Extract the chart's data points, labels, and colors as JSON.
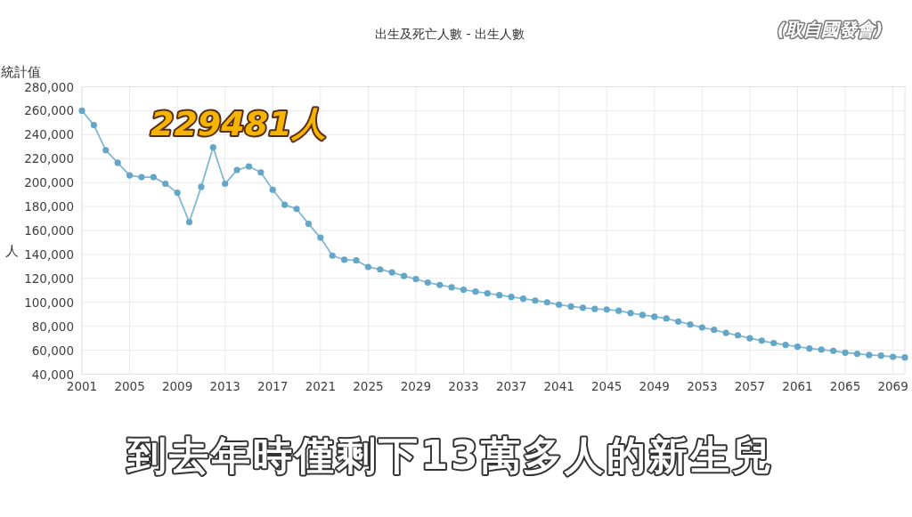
{
  "chart_data": {
    "type": "line",
    "title": "出生及死亡人數 - 出生人數",
    "ylabel": "人",
    "annotations": [
      "統計值",
      "(取自國發會)",
      "到去年時僅剩下13萬多人的新生兒",
      {
        "text": "229481人",
        "x": 2012,
        "y": 229481
      }
    ],
    "x": [
      2001,
      2002,
      2003,
      2004,
      2005,
      2006,
      2007,
      2008,
      2009,
      2010,
      2011,
      2012,
      2013,
      2014,
      2015,
      2016,
      2017,
      2018,
      2019,
      2020,
      2021,
      2022,
      2023,
      2024,
      2025,
      2026,
      2027,
      2028,
      2029,
      2030,
      2031,
      2032,
      2033,
      2034,
      2035,
      2036,
      2037,
      2038,
      2039,
      2040,
      2041,
      2042,
      2043,
      2044,
      2045,
      2046,
      2047,
      2048,
      2049,
      2050,
      2051,
      2052,
      2053,
      2054,
      2055,
      2056,
      2057,
      2058,
      2059,
      2060,
      2061,
      2062,
      2063,
      2064,
      2065,
      2066,
      2067,
      2068,
      2069,
      2070
    ],
    "series": [
      {
        "color": "#64a6c8",
        "values": [
          260000,
          248000,
          227000,
          216500,
          206000,
          204500,
          204500,
          199000,
          191500,
          167000,
          196500,
          229481,
          199000,
          210500,
          213500,
          208500,
          194000,
          181500,
          178000,
          165500,
          154000,
          139000,
          135500,
          135000,
          129500,
          127500,
          125000,
          122000,
          119500,
          116500,
          114500,
          112500,
          110500,
          109000,
          107500,
          106000,
          104500,
          103000,
          101500,
          100000,
          98000,
          96500,
          95500,
          94500,
          94000,
          93000,
          91000,
          89500,
          88000,
          86500,
          84000,
          81500,
          79000,
          77000,
          74500,
          72500,
          70000,
          68000,
          66000,
          64500,
          63000,
          61500,
          60500,
          59500,
          58000,
          57000,
          56000,
          55500,
          54500,
          54000
        ]
      }
    ],
    "xlim": [
      2001,
      2070
    ],
    "ylim": [
      40000,
      280000
    ],
    "xticks": [
      2001,
      2005,
      2009,
      2013,
      2017,
      2021,
      2025,
      2029,
      2033,
      2037,
      2041,
      2045,
      2049,
      2053,
      2057,
      2061,
      2065,
      2069
    ],
    "yticks": [
      {
        "value": 40000,
        "label": "40,000"
      },
      {
        "value": 60000,
        "label": "60,000"
      },
      {
        "value": 80000,
        "label": "80,000"
      },
      {
        "value": 100000,
        "label": "100,000"
      },
      {
        "value": 120000,
        "label": "120,000"
      },
      {
        "value": 140000,
        "label": "140,000"
      },
      {
        "value": 160000,
        "label": "160,000"
      },
      {
        "value": 180000,
        "label": "180,000"
      },
      {
        "value": 200000,
        "label": "200,000"
      },
      {
        "value": 220000,
        "label": "220,000"
      },
      {
        "value": 240000,
        "label": "240,000"
      },
      {
        "value": 260000,
        "label": "260,000"
      },
      {
        "value": 280000,
        "label": "280,000"
      }
    ],
    "grid": true,
    "marker": "circle",
    "line_style": "solid"
  }
}
